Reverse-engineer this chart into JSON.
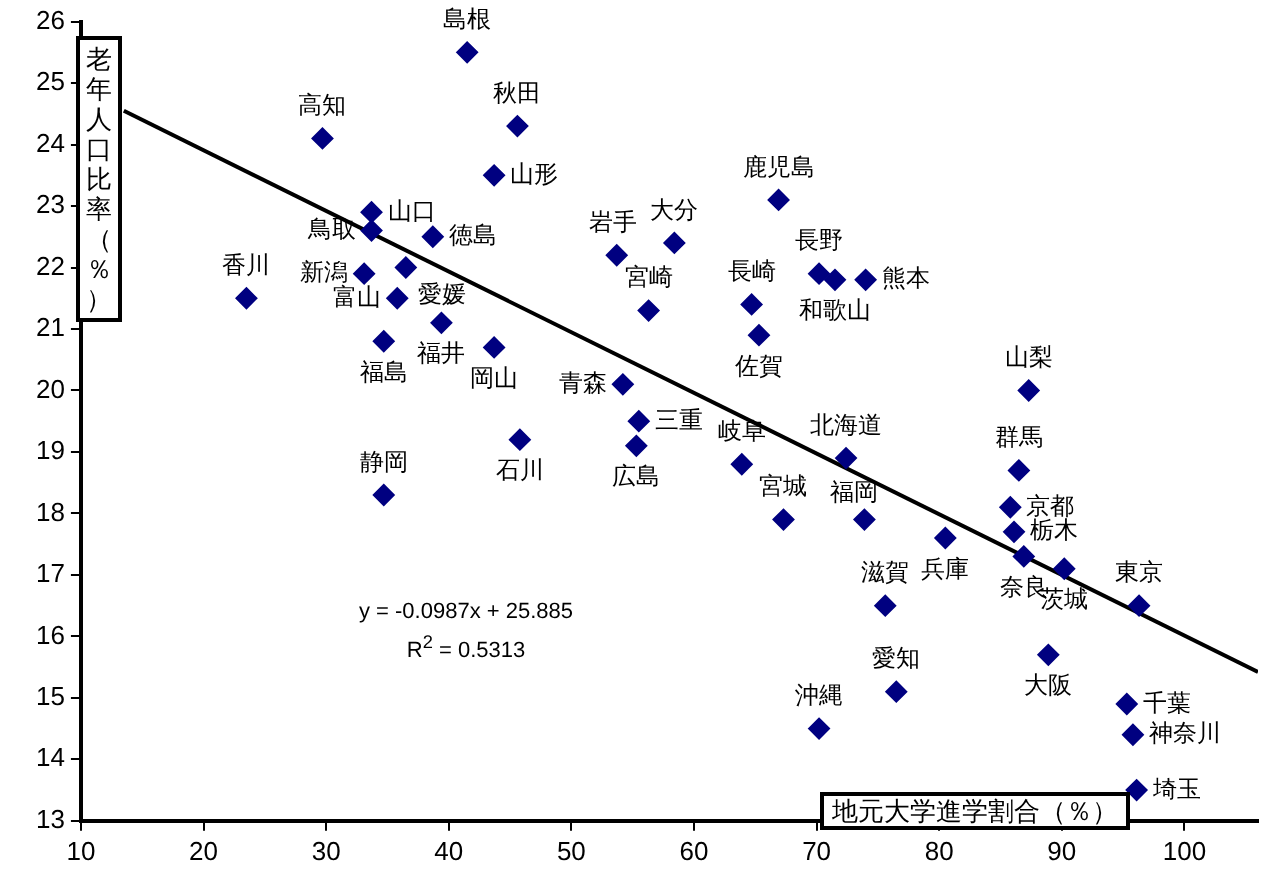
{
  "chart_data": {
    "type": "scatter",
    "xlabel": "地元大学進学割合（％）",
    "ylabel": "老年人口比率（％）",
    "xlim": [
      10,
      106
    ],
    "xticks": [
      10,
      20,
      30,
      40,
      50,
      60,
      70,
      80,
      90,
      100
    ],
    "ylim": [
      13,
      26
    ],
    "yticks": [
      13,
      14,
      15,
      16,
      17,
      18,
      19,
      20,
      21,
      22,
      23,
      24,
      25,
      26
    ],
    "grid": false,
    "legend": false,
    "marker": "diamond",
    "series": [
      {
        "type": "scatter",
        "color": "#000080",
        "x": [
          41.5,
          29.7,
          45.6,
          43.7,
          33.7,
          33.7,
          38.7,
          33.1,
          36.5,
          35.8,
          39.4,
          34.7,
          43.7,
          23.5,
          53.7,
          56.3,
          54.2,
          55.5,
          55.3,
          45.8,
          34.7,
          66.9,
          58.4,
          70.2,
          71.5,
          74.0,
          64.7,
          65.3,
          87.3,
          63.9,
          72.4,
          67.3,
          73.9,
          80.5,
          86.5,
          85.8,
          86.1,
          86.9,
          90.2,
          96.3,
          75.6,
          76.5,
          88.9,
          70.2,
          95.3,
          95.8,
          96.1
        ],
        "values": [
          25.5,
          24.1,
          24.3,
          23.5,
          22.9,
          22.6,
          22.5,
          21.9,
          22.0,
          21.5,
          21.1,
          20.8,
          20.7,
          21.5,
          22.2,
          21.3,
          20.1,
          19.5,
          19.1,
          19.2,
          18.3,
          23.1,
          22.4,
          21.9,
          21.8,
          21.8,
          21.4,
          20.9,
          20.0,
          18.8,
          18.9,
          17.9,
          17.9,
          17.6,
          18.7,
          18.1,
          17.7,
          17.3,
          17.1,
          16.5,
          16.5,
          15.1,
          15.7,
          14.5,
          14.9,
          14.4,
          13.5
        ]
      },
      {
        "type": "line",
        "color": "#000000",
        "marker": "none",
        "x": [
          13.5,
          106
        ],
        "values": [
          24.55,
          15.42
        ]
      }
    ],
    "annotations": [
      {
        "text": "島根",
        "x": 41.5,
        "y": 25.5
      },
      {
        "text": "高知",
        "x": 29.7,
        "y": 24.1
      },
      {
        "text": "秋田",
        "x": 45.6,
        "y": 24.3
      },
      {
        "text": "山形",
        "x": 43.7,
        "y": 23.5
      },
      {
        "text": "山口",
        "x": 33.7,
        "y": 22.9
      },
      {
        "text": "鳥取",
        "x": 33.7,
        "y": 22.6
      },
      {
        "text": "徳島",
        "x": 38.7,
        "y": 22.5
      },
      {
        "text": "新潟",
        "x": 33.1,
        "y": 21.9
      },
      {
        "text": "愛媛",
        "x": 36.5,
        "y": 22.0
      },
      {
        "text": "富山",
        "x": 35.8,
        "y": 21.5
      },
      {
        "text": "福井",
        "x": 39.4,
        "y": 21.1
      },
      {
        "text": "福島",
        "x": 34.7,
        "y": 20.8
      },
      {
        "text": "岡山",
        "x": 43.7,
        "y": 20.7
      },
      {
        "text": "香川",
        "x": 23.5,
        "y": 21.5
      },
      {
        "text": "岩手",
        "x": 53.7,
        "y": 22.2
      },
      {
        "text": "宮崎",
        "x": 56.3,
        "y": 21.3
      },
      {
        "text": "青森",
        "x": 54.2,
        "y": 20.1
      },
      {
        "text": "三重",
        "x": 55.5,
        "y": 19.5
      },
      {
        "text": "広島",
        "x": 55.3,
        "y": 19.1
      },
      {
        "text": "石川",
        "x": 45.8,
        "y": 19.2
      },
      {
        "text": "静岡",
        "x": 34.7,
        "y": 18.3
      },
      {
        "text": "鹿児島",
        "x": 66.9,
        "y": 23.1
      },
      {
        "text": "大分",
        "x": 58.4,
        "y": 22.4
      },
      {
        "text": "長野",
        "x": 70.2,
        "y": 21.9
      },
      {
        "text": "和歌山",
        "x": 71.5,
        "y": 21.8
      },
      {
        "text": "熊本",
        "x": 74.0,
        "y": 21.8
      },
      {
        "text": "長崎",
        "x": 64.7,
        "y": 21.4
      },
      {
        "text": "佐賀",
        "x": 65.3,
        "y": 20.9
      },
      {
        "text": "山梨",
        "x": 87.3,
        "y": 20.0
      },
      {
        "text": "岐阜",
        "x": 63.9,
        "y": 18.8
      },
      {
        "text": "北海道",
        "x": 72.4,
        "y": 18.9
      },
      {
        "text": "宮城",
        "x": 67.3,
        "y": 17.9
      },
      {
        "text": "福岡",
        "x": 73.9,
        "y": 17.9
      },
      {
        "text": "兵庫",
        "x": 80.5,
        "y": 17.6
      },
      {
        "text": "群馬",
        "x": 86.5,
        "y": 18.7
      },
      {
        "text": "京都",
        "x": 85.8,
        "y": 18.1
      },
      {
        "text": "栃木",
        "x": 86.1,
        "y": 17.7
      },
      {
        "text": "奈良",
        "x": 86.9,
        "y": 17.3
      },
      {
        "text": "茨城",
        "x": 90.2,
        "y": 17.1
      },
      {
        "text": "東京",
        "x": 96.3,
        "y": 16.5
      },
      {
        "text": "滋賀",
        "x": 75.6,
        "y": 16.5
      },
      {
        "text": "愛知",
        "x": 76.5,
        "y": 15.1
      },
      {
        "text": "大阪",
        "x": 88.9,
        "y": 15.7
      },
      {
        "text": "沖縄",
        "x": 70.2,
        "y": 14.5
      },
      {
        "text": "千葉",
        "x": 95.3,
        "y": 14.9
      },
      {
        "text": "神奈川",
        "x": 95.8,
        "y": 14.4
      },
      {
        "text": "埼玉",
        "x": 96.1,
        "y": 13.5
      },
      "y = -0.0987x + 25.885",
      "R$^{2}$ = 0.5313"
    ]
  }
}
